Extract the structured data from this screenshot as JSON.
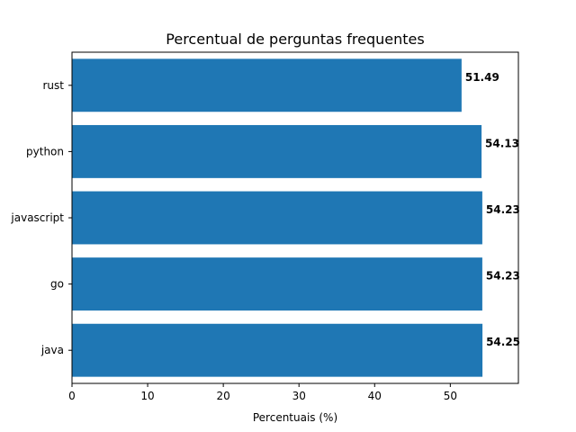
{
  "chart_data": {
    "type": "bar",
    "orientation": "horizontal",
    "title": "Percentual de perguntas frequentes",
    "xlabel": "Percentuais (%)",
    "ylabel": "",
    "categories": [
      "java",
      "go",
      "javascript",
      "python",
      "rust"
    ],
    "values": [
      54.25,
      54.23,
      54.23,
      54.13,
      51.49
    ],
    "data_labels": [
      "54.25",
      "54.23",
      "54.23",
      "54.13",
      "51.49"
    ],
    "xlim": [
      0,
      59
    ],
    "xticks": [
      0,
      10,
      20,
      30,
      40,
      50
    ],
    "xtick_labels": [
      "0",
      "10",
      "20",
      "30",
      "40",
      "50"
    ],
    "bar_color": "#1f77b4",
    "grid": false,
    "legend": "none"
  }
}
